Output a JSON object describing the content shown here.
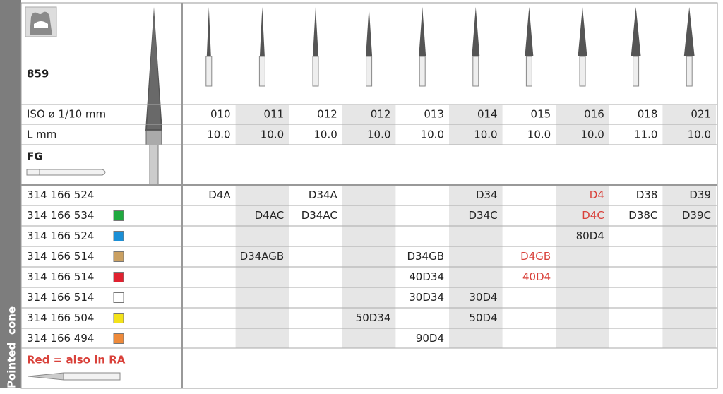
{
  "side_label": [
    "Pointed",
    "cone"
  ],
  "product": "859",
  "iso_label": "ISO ø 1/10 mm",
  "length_label": "L mm",
  "shank": "FG",
  "legend_note": "Red = also in RA",
  "sizes": [
    "010",
    "011",
    "012",
    "012",
    "013",
    "014",
    "015",
    "016",
    "018",
    "021"
  ],
  "lengths": [
    "10.0",
    "10.0",
    "10.0",
    "10.0",
    "10.0",
    "10.0",
    "10.0",
    "10.0",
    "11.0",
    "10.0"
  ],
  "rows": [
    {
      "code": "314 166 524",
      "color": null,
      "cells": [
        "D4A",
        null,
        "D34A",
        null,
        null,
        "D34",
        null,
        "D4",
        "D38",
        "D39"
      ],
      "red_cells": [
        7
      ]
    },
    {
      "code": "314 166 534",
      "color": "#1fa93f",
      "cells": [
        null,
        "D4AC",
        "D34AC",
        null,
        null,
        "D34C",
        null,
        "D4C",
        "D38C",
        "D39C"
      ],
      "red_cells": [
        7
      ]
    },
    {
      "code": "314 166 524",
      "color": "#1b8fd6",
      "cells": [
        null,
        null,
        null,
        null,
        null,
        null,
        null,
        "80D4",
        null,
        null
      ],
      "red_cells": []
    },
    {
      "code": "314 166 514",
      "color": "#caa062",
      "cells": [
        null,
        "D34AGB",
        null,
        null,
        "D34GB",
        null,
        "D4GB",
        null,
        null,
        null
      ],
      "red_cells": [
        6
      ]
    },
    {
      "code": "314 166 514",
      "color": "#e02230",
      "cells": [
        null,
        null,
        null,
        null,
        "40D34",
        null,
        "40D4",
        null,
        null,
        null
      ],
      "red_cells": [
        6
      ]
    },
    {
      "code": "314 166 514",
      "color": "#ffffff",
      "cells": [
        null,
        null,
        null,
        null,
        "30D34",
        "30D4",
        null,
        null,
        null,
        null
      ],
      "red_cells": []
    },
    {
      "code": "314 166 504",
      "color": "#f3e21a",
      "cells": [
        null,
        null,
        null,
        "50D34",
        null,
        "50D4",
        null,
        null,
        null,
        null
      ],
      "red_cells": []
    },
    {
      "code": "314 166 494",
      "color": "#ee8a3a",
      "cells": [
        null,
        null,
        null,
        null,
        "90D4",
        null,
        null,
        null,
        null,
        null
      ],
      "red_cells": []
    }
  ]
}
